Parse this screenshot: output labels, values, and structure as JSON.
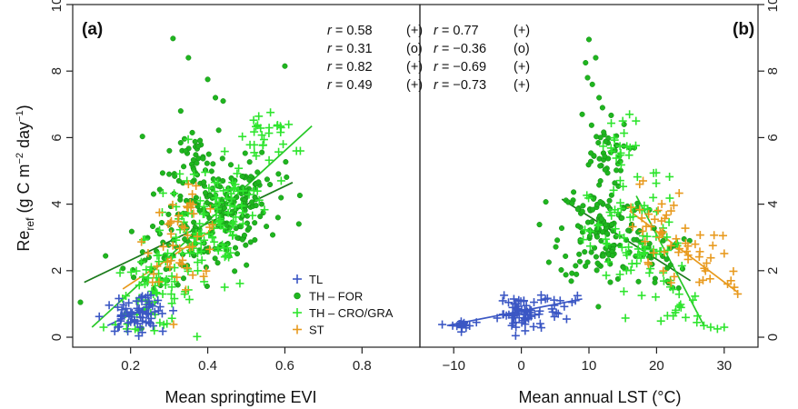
{
  "colors": {
    "TL": "#3b57c4",
    "FOR": "#1fb51f",
    "CRO": "#2ee52e",
    "ST": "#e89a1e",
    "FOR_line": "#1a7a1a",
    "CRO_line": "#27c827"
  },
  "ylabel_main": "Re",
  "ylabel_sub": "ref",
  "ylabel_unit_prefix": " (g C m",
  "ylabel_unit_exp1": "−2",
  "ylabel_unit_mid": " day",
  "ylabel_unit_exp2": "−1",
  "ylabel_unit_close": ")",
  "legend": [
    {
      "key": "TL",
      "label": "TL",
      "marker": "plus"
    },
    {
      "key": "FOR",
      "label": "TH – FOR",
      "marker": "dot"
    },
    {
      "key": "CRO",
      "label": "TH – CRO/GRA",
      "marker": "plus"
    },
    {
      "key": "ST",
      "label": "ST",
      "marker": "plus"
    }
  ],
  "chart_data": [
    {
      "type": "scatter",
      "panel_label": "(a)",
      "xlabel": "Mean springtime EVI",
      "ylabel": "Re_ref (g C m−2 day−1)",
      "xlim": [
        0.05,
        0.95
      ],
      "ylim": [
        -0.3,
        10
      ],
      "xticks": [
        0.2,
        0.4,
        0.6,
        0.8
      ],
      "xtick_labels": [
        "0.2",
        "0.4",
        "0.6",
        "0.8"
      ],
      "yticks": [
        0,
        2,
        4,
        6,
        8,
        10
      ],
      "ytick_labels": [
        "0",
        "2",
        "4",
        "6",
        "8",
        "10"
      ],
      "y_tick_side": "left",
      "correlations": [
        {
          "key": "TL",
          "prefix": "r",
          "text": " = 0.58 ",
          "sign": "(+)"
        },
        {
          "key": "FOR",
          "prefix": "r",
          "text": " = 0.31 ",
          "sign": "(o)"
        },
        {
          "key": "CRO",
          "prefix": "r",
          "text": " = 0.82 ",
          "sign": "(+)"
        },
        {
          "key": "ST",
          "prefix": "r",
          "text": " = 0.49 ",
          "sign": "(+)"
        }
      ],
      "fit_lines": [
        {
          "key": "TL",
          "x": [
            0.14,
            0.27
          ],
          "y": [
            0.35,
            1.05
          ]
        },
        {
          "key": "FOR",
          "x": [
            0.08,
            0.62
          ],
          "y": [
            1.65,
            4.65
          ]
        },
        {
          "key": "CRO",
          "x": [
            0.1,
            0.67
          ],
          "y": [
            0.3,
            6.35
          ]
        },
        {
          "key": "ST",
          "x": [
            0.18,
            0.42
          ],
          "y": [
            1.45,
            3.3
          ]
        }
      ],
      "series": [
        {
          "name": "TL",
          "clusters": [
            {
              "cx": 0.2,
              "cy": 0.6,
              "sx": 0.035,
              "sy": 0.25,
              "n": 50
            },
            {
              "cx": 0.24,
              "cy": 0.85,
              "sx": 0.025,
              "sy": 0.25,
              "n": 20
            }
          ]
        },
        {
          "name": "TH – FOR",
          "clusters": [
            {
              "cx": 0.42,
              "cy": 3.5,
              "sx": 0.07,
              "sy": 0.75,
              "n": 150
            },
            {
              "cx": 0.37,
              "cy": 5.4,
              "sx": 0.04,
              "sy": 0.55,
              "n": 40
            },
            {
              "cx": 0.5,
              "cy": 4.4,
              "sx": 0.05,
              "sy": 0.5,
              "n": 50
            },
            {
              "cx": 0.28,
              "cy": 2.3,
              "sx": 0.05,
              "sy": 0.6,
              "n": 35
            }
          ],
          "points": [
            [
              0.31,
              8.98
            ],
            [
              0.35,
              8.4
            ],
            [
              0.4,
              7.75
            ],
            [
              0.6,
              8.15
            ],
            [
              0.33,
              6.8
            ],
            [
              0.42,
              7.2
            ],
            [
              0.44,
              7.1
            ],
            [
              0.3,
              4.9
            ],
            [
              0.07,
              1.05
            ],
            [
              0.36,
              6.15
            ]
          ]
        },
        {
          "name": "TH – CRO/GRA",
          "clusters": [
            {
              "cx": 0.26,
              "cy": 1.3,
              "sx": 0.05,
              "sy": 0.5,
              "n": 60
            },
            {
              "cx": 0.38,
              "cy": 3.0,
              "sx": 0.07,
              "sy": 0.9,
              "n": 80
            },
            {
              "cx": 0.55,
              "cy": 5.9,
              "sx": 0.04,
              "sy": 0.35,
              "n": 25
            },
            {
              "cx": 0.47,
              "cy": 4.3,
              "sx": 0.05,
              "sy": 0.6,
              "n": 40
            }
          ],
          "points": [
            [
              0.63,
              5.6
            ],
            [
              0.64,
              5.6
            ],
            [
              0.59,
              6.3
            ],
            [
              0.58,
              6.35
            ],
            [
              0.13,
              0.3
            ],
            [
              0.22,
              0.2
            ],
            [
              0.19,
              0.25
            ]
          ]
        },
        {
          "name": "ST",
          "clusters": [
            {
              "cx": 0.34,
              "cy": 3.0,
              "sx": 0.05,
              "sy": 0.65,
              "n": 45
            }
          ],
          "points": [
            [
              0.35,
              4.6
            ],
            [
              0.36,
              4.3
            ],
            [
              0.26,
              1.9
            ],
            [
              0.32,
              1.8
            ]
          ]
        }
      ]
    },
    {
      "type": "scatter",
      "panel_label": "(b)",
      "xlabel": "Mean annual LST (°C)",
      "ylabel": "",
      "xlim": [
        -15,
        35
      ],
      "ylim": [
        -0.3,
        10
      ],
      "xticks": [
        -10,
        0,
        10,
        20,
        30
      ],
      "xtick_labels": [
        "−10",
        "0",
        "10",
        "20",
        "30"
      ],
      "yticks": [
        0,
        2,
        4,
        6,
        8,
        10
      ],
      "ytick_labels": [
        "0",
        "2",
        "4",
        "6",
        "8",
        "10"
      ],
      "y_tick_side": "right",
      "correlations": [
        {
          "key": "TL",
          "prefix": "r",
          "text": " = 0.77      ",
          "sign": "(+)"
        },
        {
          "key": "FOR",
          "prefix": "r",
          "text": " = −0.36  ",
          "sign": "(o)"
        },
        {
          "key": "CRO",
          "prefix": "r",
          "text": " = −0.69  ",
          "sign": "(+)"
        },
        {
          "key": "ST",
          "prefix": "r",
          "text": " = −0.73  ",
          "sign": "(+)"
        }
      ],
      "fit_lines": [
        {
          "key": "TL",
          "x": [
            -11,
            9
          ],
          "y": [
            0.35,
            1.15
          ]
        },
        {
          "key": "FOR",
          "x": [
            6,
            25
          ],
          "y": [
            4.15,
            1.7
          ]
        },
        {
          "key": "CRO",
          "x": [
            17,
            27
          ],
          "y": [
            4.25,
            0.35
          ]
        },
        {
          "key": "ST",
          "x": [
            16,
            32
          ],
          "y": [
            3.8,
            1.35
          ]
        }
      ],
      "series": [
        {
          "name": "TL",
          "clusters": [
            {
              "cx": -9,
              "cy": 0.35,
              "sx": 0.9,
              "sy": 0.08,
              "n": 18
            },
            {
              "cx": 0,
              "cy": 0.7,
              "sx": 1.6,
              "sy": 0.25,
              "n": 60
            },
            {
              "cx": 5,
              "cy": 0.85,
              "sx": 1.5,
              "sy": 0.2,
              "n": 15
            }
          ],
          "points": [
            [
              8,
              1.1
            ],
            [
              7.5,
              1.05
            ],
            [
              8.3,
              1.25
            ]
          ]
        },
        {
          "name": "TH – FOR",
          "clusters": [
            {
              "cx": 12,
              "cy": 3.2,
              "sx": 3.2,
              "sy": 0.8,
              "n": 140
            },
            {
              "cx": 12,
              "cy": 5.5,
              "sx": 2,
              "sy": 0.5,
              "n": 40
            },
            {
              "cx": 20,
              "cy": 2.4,
              "sx": 2.2,
              "sy": 0.5,
              "n": 30
            }
          ],
          "points": [
            [
              10,
              8.95
            ],
            [
              11,
              8.4
            ],
            [
              9.5,
              8.25
            ],
            [
              9.8,
              7.8
            ],
            [
              10.5,
              7.6
            ],
            [
              11.5,
              7.2
            ],
            [
              12,
              6.9
            ],
            [
              9,
              6.7
            ]
          ]
        },
        {
          "name": "TH – CRO/GRA",
          "clusters": [
            {
              "cx": 17,
              "cy": 2.8,
              "sx": 3.5,
              "sy": 1,
              "n": 80
            },
            {
              "cx": 15,
              "cy": 5.5,
              "sx": 2,
              "sy": 0.6,
              "n": 20
            },
            {
              "cx": 24,
              "cy": 1,
              "sx": 1.5,
              "sy": 0.4,
              "n": 15
            }
          ],
          "points": [
            [
              28,
              0.3
            ],
            [
              29,
              0.25
            ],
            [
              30,
              0.3
            ],
            [
              27,
              0.35
            ],
            [
              16,
              6.7
            ],
            [
              15,
              6.5
            ]
          ]
        },
        {
          "name": "ST",
          "clusters": [
            {
              "cx": 20,
              "cy": 3.3,
              "sx": 2,
              "sy": 0.5,
              "n": 30
            },
            {
              "cx": 26,
              "cy": 2.4,
              "sx": 2.5,
              "sy": 0.4,
              "n": 25
            }
          ],
          "points": [
            [
              31.5,
              1.5
            ],
            [
              32,
              1.3
            ],
            [
              31,
              1.7
            ],
            [
              30.5,
              1.6
            ],
            [
              18,
              4.7
            ],
            [
              17.5,
              4.6
            ]
          ]
        }
      ]
    }
  ]
}
